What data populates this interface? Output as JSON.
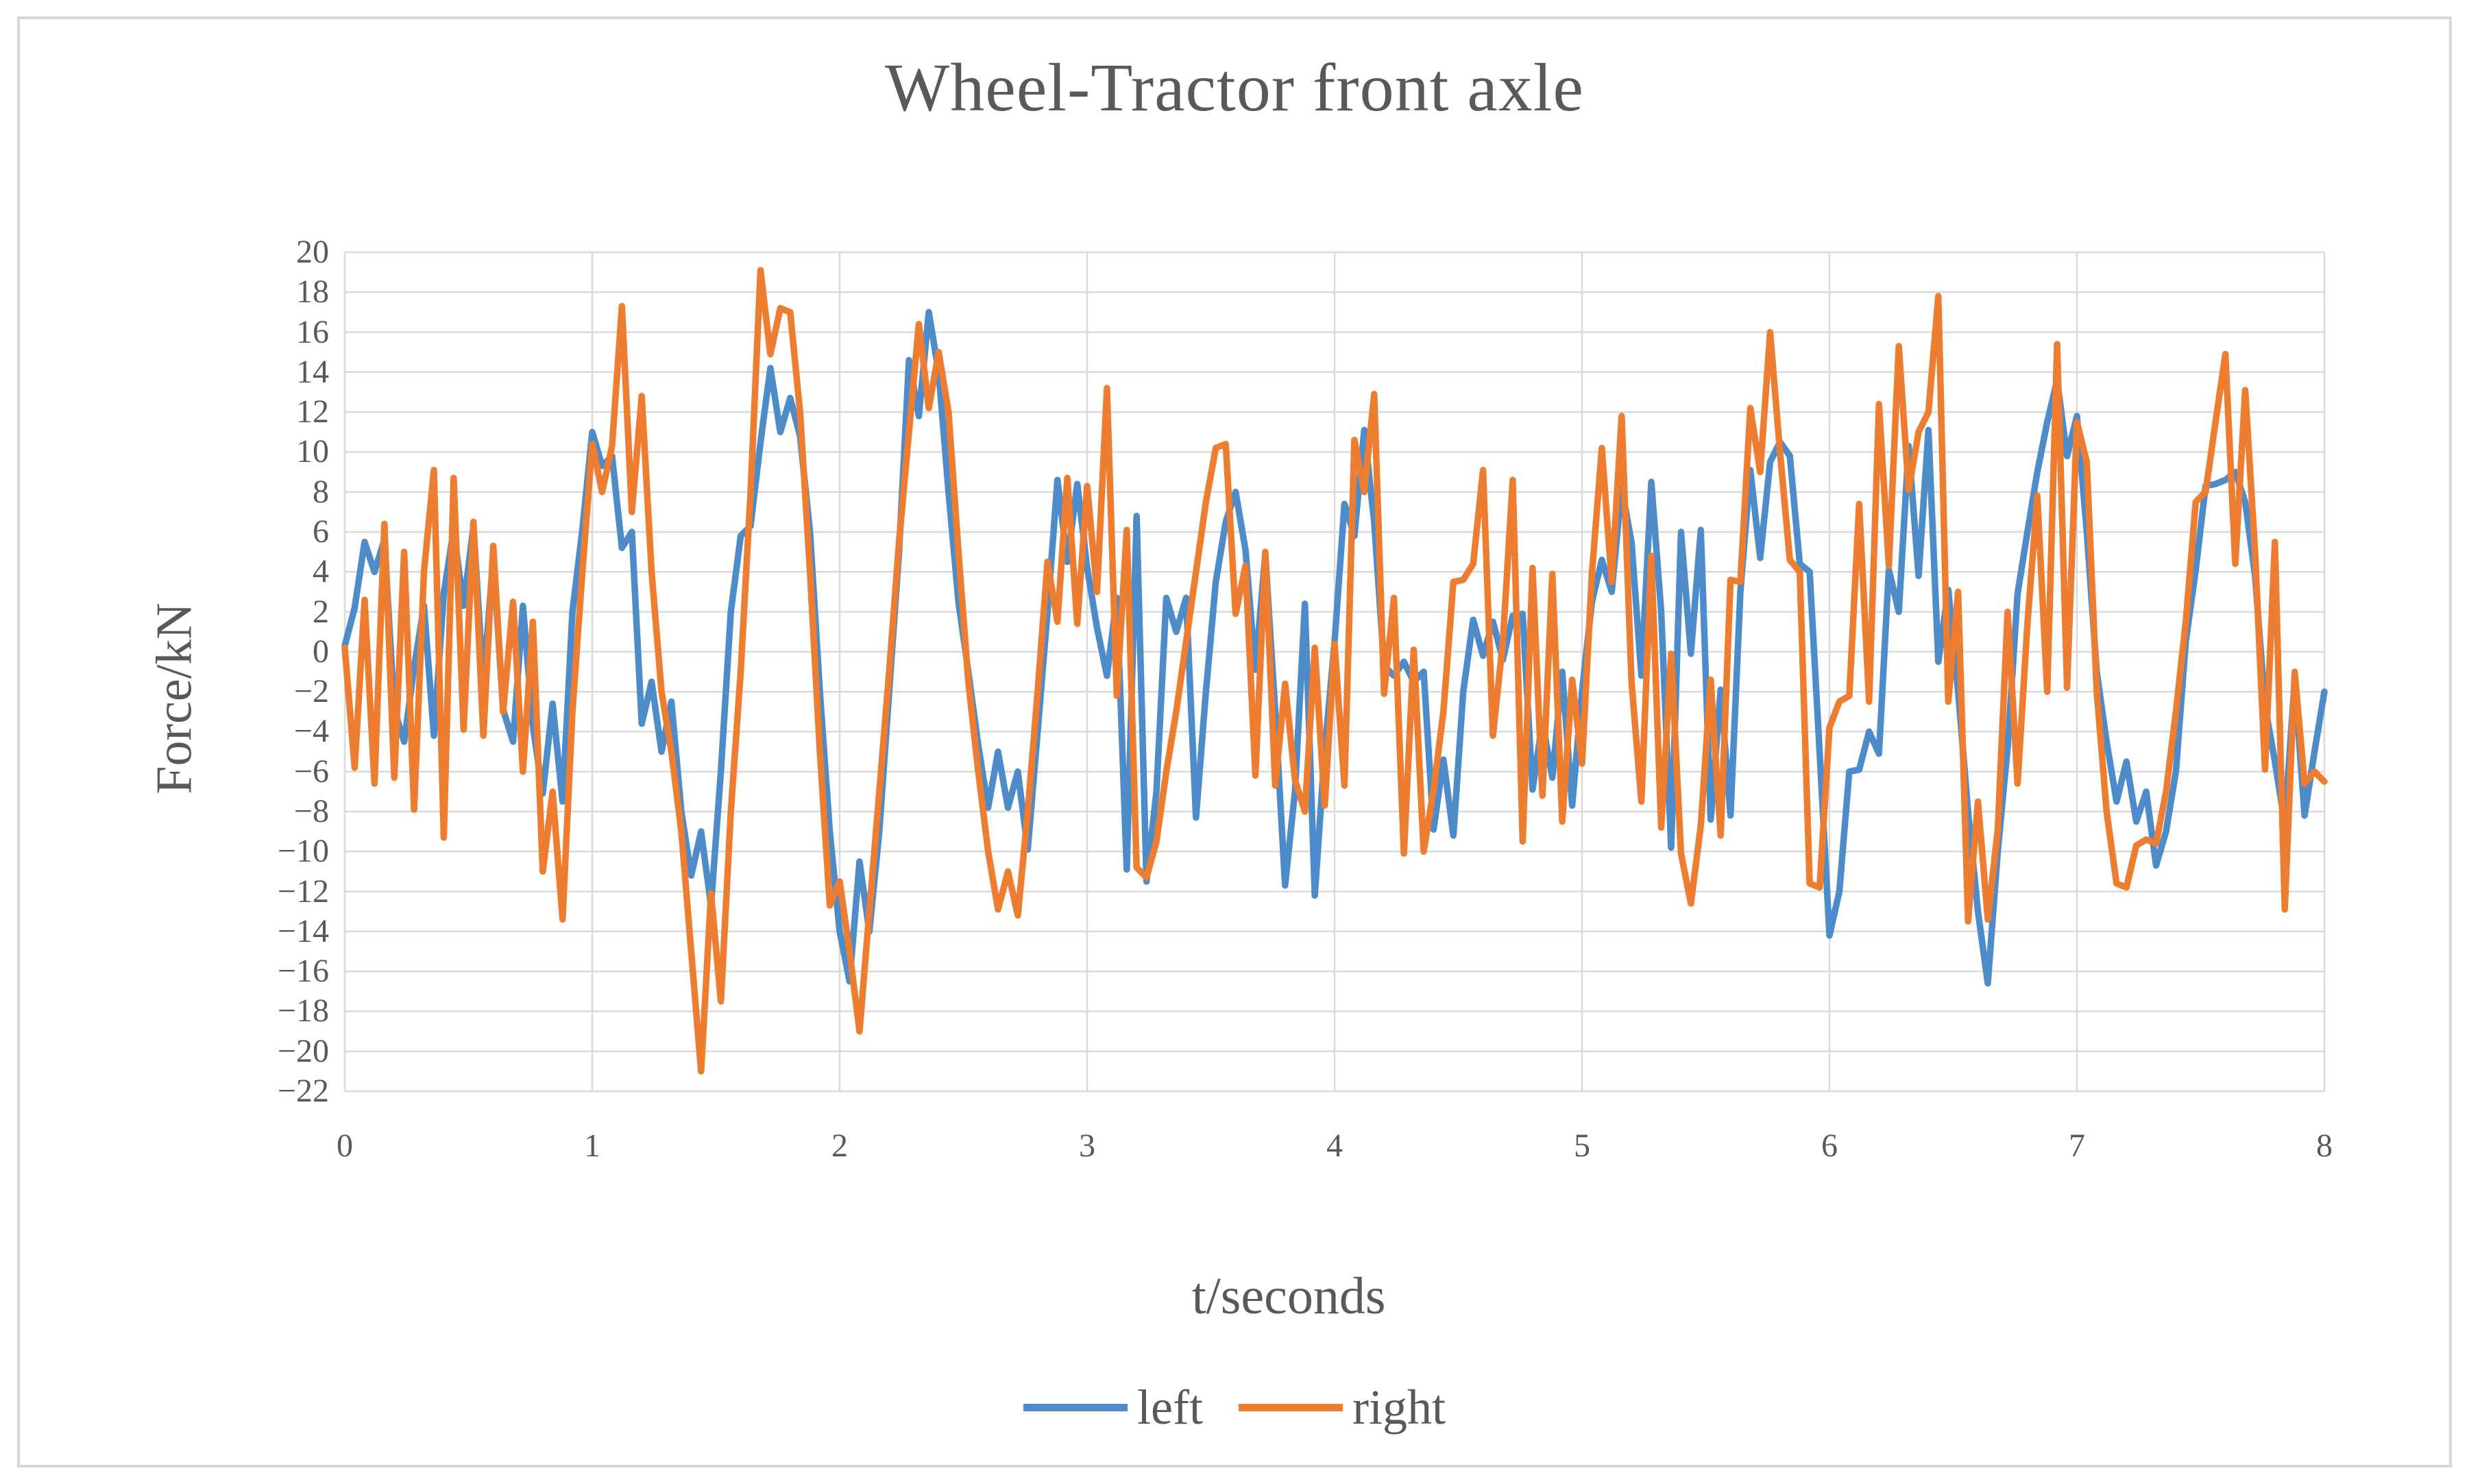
{
  "chart_data": {
    "type": "line",
    "title": "Wheel-Tractor front axle",
    "xlabel": "t/seconds",
    "ylabel": "Force/kN",
    "xlim": [
      0,
      8
    ],
    "ylim": [
      -22,
      20
    ],
    "x_ticks": [
      0,
      1,
      2,
      3,
      4,
      5,
      6,
      7,
      8
    ],
    "y_ticks": [
      20,
      18,
      16,
      14,
      12,
      10,
      8,
      6,
      4,
      2,
      0,
      -2,
      -4,
      -6,
      -8,
      -10,
      -12,
      -14,
      -16,
      -18,
      -20,
      -22
    ],
    "grid": true,
    "legend_position": "bottom",
    "x_start": 0,
    "x_step": 0.04,
    "series": [
      {
        "name": "left",
        "color": "#4D8CC9",
        "values": [
          0.3,
          2.2,
          5.5,
          4.0,
          5.6,
          -2.9,
          -4.5,
          -0.8,
          2.3,
          -4.2,
          2.9,
          6.1,
          2.3,
          6.3,
          -1.6,
          4.7,
          -2.9,
          -4.5,
          2.3,
          -3.7,
          -7.1,
          -2.6,
          -7.5,
          2.0,
          6.1,
          11.0,
          9.3,
          9.8,
          5.2,
          6.0,
          -3.6,
          -1.5,
          -5.0,
          -2.5,
          -8.0,
          -11.2,
          -9.0,
          -12.7,
          -6.0,
          2.0,
          5.8,
          6.3,
          10.5,
          14.2,
          11.0,
          12.7,
          10.8,
          6.0,
          -2.0,
          -9.0,
          -14.0,
          -16.5,
          -10.5,
          -14.0,
          -9.0,
          -2.0,
          5.0,
          14.6,
          11.8,
          17.0,
          14.0,
          8.0,
          2.5,
          -1.0,
          -4.7,
          -7.8,
          -5.0,
          -7.8,
          -6.0,
          -9.9,
          -4.0,
          2.0,
          8.6,
          4.5,
          8.4,
          4.2,
          1.2,
          -1.2,
          2.7,
          -10.9,
          6.8,
          -11.5,
          -7.0,
          2.7,
          1.0,
          2.7,
          -8.3,
          -2.0,
          3.5,
          6.5,
          8.0,
          5.1,
          -0.9,
          4.9,
          -3.0,
          -11.7,
          -7.0,
          2.4,
          -12.2,
          -5.0,
          0.5,
          7.4,
          5.8,
          11.1,
          6.5,
          -0.7,
          -1.2,
          -0.5,
          -1.5,
          -1.0,
          -8.9,
          -5.4,
          -9.2,
          -2.0,
          1.6,
          -0.2,
          1.5,
          -0.4,
          1.8,
          1.9,
          -6.9,
          -3.5,
          -6.3,
          -1.0,
          -7.7,
          -2.0,
          2.5,
          4.6,
          3.0,
          8.2,
          5.5,
          -1.2,
          8.5,
          2.0,
          -9.8,
          6.0,
          -0.1,
          6.1,
          -8.4,
          -1.9,
          -8.2,
          3.0,
          9.1,
          4.7,
          9.5,
          10.5,
          9.8,
          4.4,
          4.0,
          -5.0,
          -14.2,
          -12.0,
          -6.0,
          -5.9,
          -4.0,
          -5.1,
          4.1,
          2.0,
          10.3,
          3.8,
          11.1,
          -0.5,
          3.1,
          -2.0,
          -8.0,
          -13.0,
          -16.6,
          -10.0,
          -4.8,
          2.9,
          6.0,
          9.0,
          11.5,
          13.6,
          9.8,
          11.8,
          6.0,
          -1.0,
          -4.5,
          -7.5,
          -5.5,
          -8.5,
          -7.0,
          -10.7,
          -9.0,
          -6.0,
          0.5,
          4.1,
          8.3,
          8.4,
          8.6,
          9.0,
          7.5,
          3.8,
          -2.7,
          -5.5,
          -8.6,
          -1.4,
          -8.2,
          -5.0,
          -2.0
        ]
      },
      {
        "name": "right",
        "color": "#ED7D31",
        "values": [
          0.2,
          -5.8,
          2.6,
          -6.6,
          6.4,
          -6.3,
          5.0,
          -7.9,
          4.0,
          9.1,
          -9.3,
          8.7,
          -3.9,
          6.5,
          -4.2,
          5.3,
          -3.0,
          2.5,
          -6.0,
          1.5,
          -11.0,
          -7.0,
          -13.4,
          -3.0,
          4.0,
          10.4,
          8.0,
          10.3,
          17.3,
          7.0,
          12.8,
          4.0,
          -2.0,
          -5.0,
          -9.0,
          -15.0,
          -21.0,
          -12.1,
          -17.5,
          -8.0,
          -1.0,
          8.0,
          19.1,
          14.9,
          17.2,
          17.0,
          12.0,
          4.0,
          -5.0,
          -12.7,
          -11.5,
          -15.0,
          -19.0,
          -13.0,
          -7.0,
          -1.0,
          5.5,
          11.0,
          16.4,
          12.2,
          15.0,
          12.0,
          5.0,
          -1.5,
          -6.0,
          -10.0,
          -12.9,
          -11.0,
          -13.2,
          -8.0,
          -2.0,
          4.5,
          1.5,
          8.7,
          1.4,
          8.3,
          3.0,
          13.2,
          -2.2,
          6.1,
          -10.8,
          -11.3,
          -9.5,
          -6.0,
          -3.0,
          0.5,
          4.0,
          7.5,
          10.2,
          10.4,
          1.9,
          4.3,
          -6.2,
          5.0,
          -6.7,
          -1.6,
          -6.4,
          -8.0,
          0.2,
          -7.7,
          0.4,
          -6.7,
          10.6,
          8.0,
          12.9,
          -2.1,
          2.7,
          -10.1,
          0.1,
          -10.0,
          -6.9,
          -3.0,
          3.5,
          3.6,
          4.4,
          9.1,
          -4.2,
          0.5,
          8.6,
          -9.5,
          4.2,
          -7.2,
          3.9,
          -8.5,
          -1.4,
          -5.6,
          3.9,
          10.2,
          3.5,
          11.8,
          -1.5,
          -7.5,
          4.8,
          -8.8,
          -0.1,
          -10.1,
          -12.6,
          -8.7,
          -1.4,
          -9.2,
          3.6,
          3.5,
          12.2,
          9.0,
          16.0,
          10.0,
          4.6,
          4.0,
          -11.6,
          -11.8,
          -3.8,
          -2.5,
          -2.2,
          7.4,
          -2.5,
          12.4,
          4.3,
          15.3,
          8.1,
          11.0,
          12.0,
          17.8,
          -2.5,
          3.0,
          -13.5,
          -7.5,
          -13.4,
          -8.9,
          2.0,
          -6.6,
          1.4,
          7.8,
          -2.0,
          15.4,
          -1.8,
          11.5,
          9.5,
          -2.0,
          -8.0,
          -11.6,
          -11.8,
          -9.7,
          -9.4,
          -9.6,
          -7.0,
          -3.0,
          1.5,
          7.5,
          8.0,
          11.5,
          14.9,
          4.4,
          13.1,
          5.0,
          -5.9,
          5.5,
          -12.9,
          -1.0,
          -6.6,
          -6.0,
          -6.5
        ]
      }
    ]
  },
  "style": {
    "text_color": "#595959",
    "gridline_color": "#d9d9d9",
    "frame_color": "#d8d8d8",
    "background": "#ffffff"
  },
  "legend": {
    "items": [
      {
        "label": "left",
        "color": "#4D8CC9"
      },
      {
        "label": "right",
        "color": "#ED7D31"
      }
    ]
  }
}
